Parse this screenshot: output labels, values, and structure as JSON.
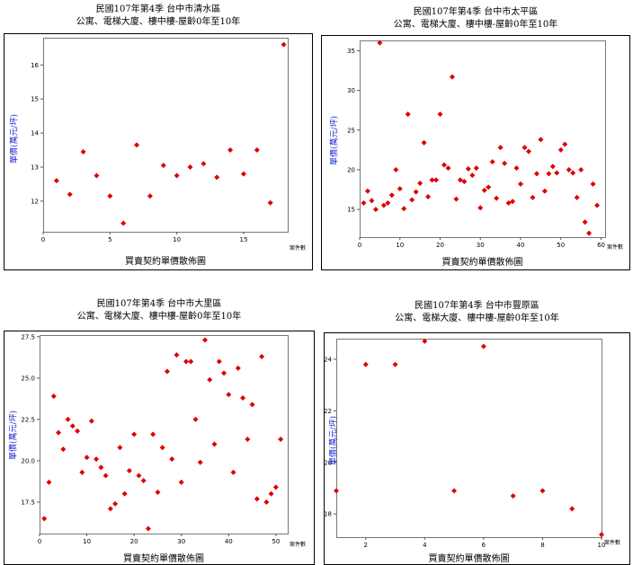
{
  "chart_data": [
    {
      "type": "scatter",
      "title": "民國107年第4季 台中市清水區",
      "subtitle": "公寓、電梯大廈、樓中樓-屋齡0年至10年",
      "ylabel": "單價(萬元/坪)",
      "xlabel": "買賣契約單價散佈圖",
      "xunit": "案件數",
      "xlim": [
        0,
        18.3
      ],
      "ylim": [
        11.1,
        16.8
      ],
      "xticks": [
        "0",
        "5",
        "10",
        "15"
      ],
      "yticks": [
        "12",
        "13",
        "14",
        "15",
        "16"
      ],
      "point_color": "#e00000",
      "x": [
        1,
        2,
        3,
        4,
        5,
        6,
        7,
        8,
        9,
        10,
        11,
        12,
        13,
        14,
        15,
        16,
        17,
        18
      ],
      "y": [
        12.6,
        12.2,
        13.45,
        12.75,
        12.15,
        11.35,
        13.65,
        12.15,
        13.05,
        12.75,
        13.0,
        13.1,
        12.7,
        13.5,
        12.8,
        13.5,
        11.95,
        16.6
      ]
    },
    {
      "type": "scatter",
      "title": "民國107年第4季 台中市太平區",
      "subtitle": "公寓、電梯大廈、樓中樓-屋齡0年至10年",
      "ylabel": "單價(萬元/坪)",
      "xlabel": "買賣契約單價散佈圖",
      "xunit": "案件數",
      "xlim": [
        0,
        61
      ],
      "ylim": [
        11.5,
        36.3
      ],
      "xticks": [
        "0",
        "10",
        "20",
        "30",
        "40",
        "50",
        "60"
      ],
      "yticks": [
        "15",
        "20",
        "25",
        "30",
        "35"
      ],
      "point_color": "#e00000",
      "x": [
        1,
        2,
        3,
        4,
        5,
        6,
        7,
        8,
        9,
        10,
        11,
        12,
        13,
        14,
        15,
        16,
        17,
        18,
        19,
        20,
        21,
        22,
        23,
        24,
        25,
        26,
        27,
        28,
        29,
        30,
        31,
        32,
        33,
        34,
        35,
        36,
        37,
        38,
        39,
        40,
        41,
        42,
        43,
        44,
        45,
        46,
        47,
        48,
        49,
        50,
        51,
        52,
        53,
        54,
        55,
        56,
        57,
        58,
        59
      ],
      "y": [
        15.8,
        17.3,
        16.1,
        15.0,
        36.0,
        15.5,
        15.8,
        16.8,
        20.0,
        17.6,
        15.1,
        27.0,
        16.2,
        17.2,
        18.3,
        23.4,
        16.6,
        18.7,
        18.7,
        27.0,
        20.6,
        20.2,
        31.7,
        16.3,
        18.7,
        18.5,
        20.1,
        19.3,
        20.2,
        15.2,
        17.4,
        17.8,
        21.0,
        16.4,
        22.8,
        20.8,
        15.8,
        16.0,
        20.2,
        18.2,
        22.8,
        22.3,
        16.5,
        19.5,
        23.8,
        17.3,
        19.5,
        20.4,
        19.6,
        22.5,
        23.2,
        20.0,
        19.6,
        16.5,
        20.0,
        13.4,
        12.0,
        18.2,
        15.5
      ]
    },
    {
      "type": "scatter",
      "title": "民國107年第4季 台中市大里區",
      "subtitle": "公寓、電梯大廈、樓中樓-屋齡0年至10年",
      "ylabel": "單價(萬元/坪)",
      "xlabel": "買賣契約單價散佈圖",
      "xunit": "案件數",
      "xlim": [
        0,
        52.5
      ],
      "ylim": [
        15.6,
        27.6
      ],
      "xticks": [
        "0",
        "10",
        "20",
        "30",
        "40",
        "50"
      ],
      "yticks": [
        "17.5",
        "20.0",
        "22.5",
        "25.0",
        "27.5"
      ],
      "point_color": "#e00000",
      "x": [
        1,
        2,
        3,
        4,
        5,
        6,
        7,
        8,
        9,
        10,
        11,
        12,
        13,
        14,
        15,
        16,
        17,
        18,
        19,
        20,
        21,
        22,
        23,
        24,
        25,
        26,
        27,
        28,
        29,
        30,
        31,
        32,
        33,
        34,
        35,
        36,
        37,
        38,
        39,
        40,
        41,
        42,
        43,
        44,
        45,
        46,
        47,
        48,
        49,
        50,
        51
      ],
      "y": [
        16.5,
        18.7,
        23.9,
        21.7,
        20.7,
        22.5,
        22.1,
        21.8,
        19.3,
        20.2,
        22.4,
        20.1,
        19.6,
        19.1,
        17.1,
        17.4,
        20.8,
        18.0,
        19.4,
        21.6,
        19.1,
        18.8,
        15.9,
        21.6,
        18.1,
        20.8,
        25.4,
        20.1,
        26.4,
        18.7,
        26.0,
        26.0,
        22.5,
        19.9,
        27.3,
        24.9,
        21.0,
        26.0,
        25.3,
        24.0,
        19.3,
        25.6,
        23.8,
        21.3,
        23.4,
        17.7,
        26.3,
        17.5,
        18.0,
        18.4,
        21.3
      ]
    },
    {
      "type": "scatter",
      "title": "民國107年第4季 台中市豐原區",
      "subtitle": "公寓、電梯大廈、樓中樓-屋齡0年至10年",
      "ylabel": "單價(萬元/坪)",
      "xlabel": "買賣契約單價散佈圖",
      "xunit": "案件數",
      "xlim": [
        1,
        10
      ],
      "ylim": [
        17.1,
        24.8
      ],
      "xticks": [
        "2",
        "4",
        "6",
        "8",
        "10"
      ],
      "yticks": [
        "18",
        "20",
        "22",
        "24"
      ],
      "point_color": "#e00000",
      "x": [
        1,
        2,
        3,
        4,
        5,
        6,
        7,
        8,
        9,
        10
      ],
      "y": [
        18.9,
        23.8,
        23.8,
        24.7,
        18.9,
        24.5,
        18.7,
        18.9,
        18.2,
        17.2
      ]
    }
  ]
}
